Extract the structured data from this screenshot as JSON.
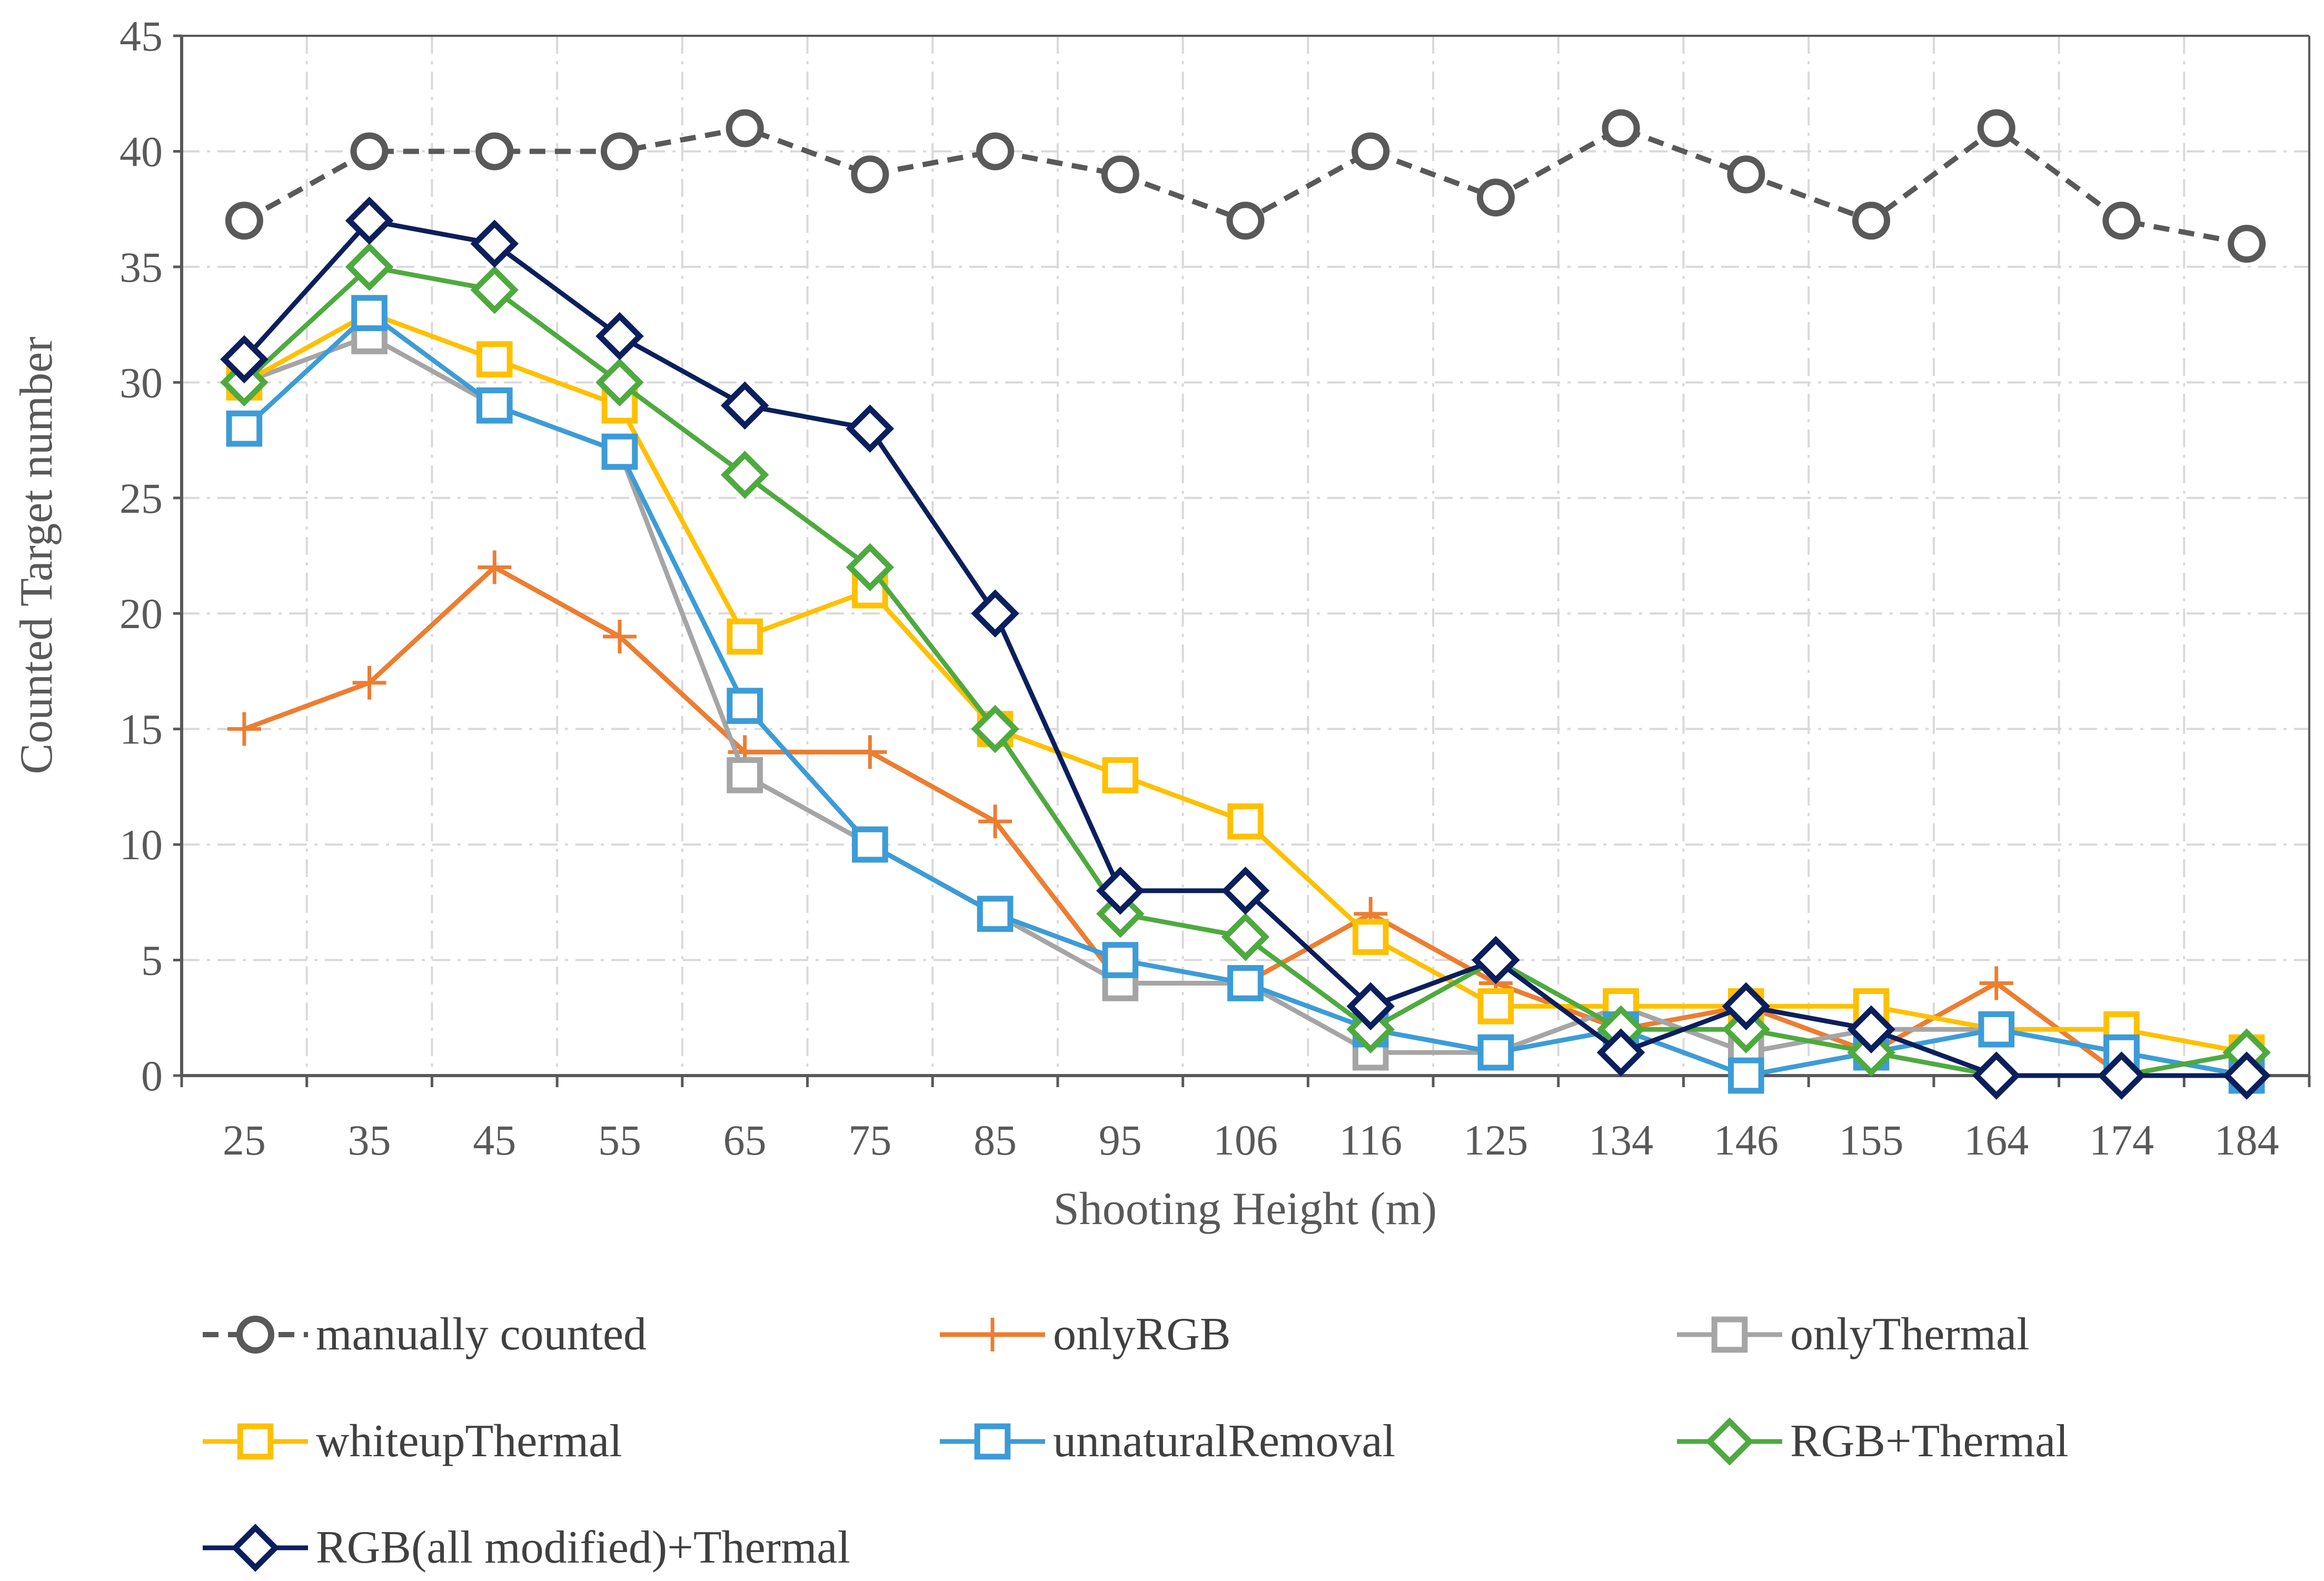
{
  "chart_data": {
    "type": "line",
    "title": "",
    "xlabel": "Shooting Height (m)",
    "ylabel": "Counted Target number",
    "categories": [
      "25",
      "35",
      "45",
      "55",
      "65",
      "75",
      "85",
      "95",
      "106",
      "116",
      "125",
      "134",
      "146",
      "155",
      "164",
      "174",
      "184"
    ],
    "ylim": [
      0,
      45
    ],
    "yticks": [
      "0",
      "5",
      "10",
      "15",
      "20",
      "25",
      "30",
      "35",
      "40",
      "45"
    ],
    "grid": true,
    "legend_position": "bottom",
    "series": [
      {
        "name": "manually counted",
        "color": "#595959",
        "marker": "circle",
        "dash": true,
        "values": [
          37,
          40,
          40,
          40,
          41,
          39,
          40,
          39,
          37,
          40,
          38,
          41,
          39,
          37,
          41,
          37,
          36
        ]
      },
      {
        "name": "onlyRGB",
        "color": "#ED7D31",
        "marker": "plus",
        "dash": false,
        "values": [
          15,
          17,
          22,
          19,
          14,
          14,
          11,
          4,
          4,
          7,
          4,
          2,
          3,
          1,
          4,
          0,
          0
        ]
      },
      {
        "name": "onlyThermal",
        "color": "#A5A5A5",
        "marker": "square",
        "dash": false,
        "values": [
          30,
          32,
          29,
          27,
          13,
          10,
          7,
          4,
          4,
          1,
          1,
          3,
          1,
          2,
          2,
          1,
          0
        ]
      },
      {
        "name": "whiteupThermal",
        "color": "#FFC000",
        "marker": "square",
        "dash": false,
        "values": [
          30,
          33,
          31,
          29,
          19,
          21,
          15,
          13,
          11,
          6,
          3,
          3,
          3,
          3,
          2,
          2,
          1
        ]
      },
      {
        "name": "unnaturalRemoval",
        "color": "#3C9CD7",
        "marker": "square",
        "dash": false,
        "values": [
          28,
          33,
          29,
          27,
          16,
          10,
          7,
          5,
          4,
          2,
          1,
          2,
          0,
          1,
          2,
          1,
          0
        ]
      },
      {
        "name": "RGB+Thermal",
        "color": "#4EAA3F",
        "marker": "diamond",
        "dash": false,
        "values": [
          30,
          35,
          34,
          30,
          26,
          22,
          15,
          7,
          6,
          2,
          5,
          2,
          2,
          1,
          0,
          0,
          1
        ]
      },
      {
        "name": "RGB(all modified)+Thermal",
        "color": "#0B1F5C",
        "marker": "diamond",
        "dash": false,
        "values": [
          31,
          37,
          36,
          32,
          29,
          28,
          20,
          8,
          8,
          3,
          5,
          1,
          3,
          2,
          0,
          0,
          0
        ]
      }
    ]
  }
}
